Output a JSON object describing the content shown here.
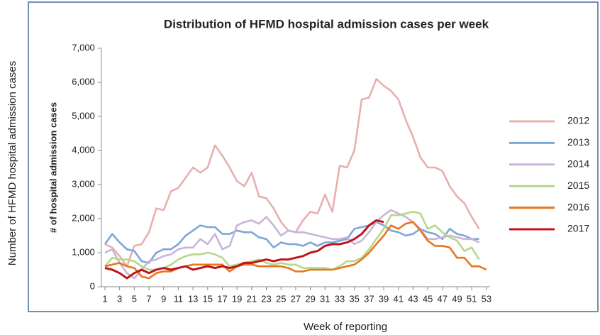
{
  "chart_data": {
    "type": "line",
    "title": "Distribution  of HFMD hospital admission  cases  per week",
    "y_label": "# of hospital admission cases",
    "outer_y_label": "Number of HFMD hospital admission cases",
    "x_label": "Week of reporting",
    "x": [
      1,
      2,
      3,
      4,
      5,
      6,
      7,
      8,
      9,
      10,
      11,
      12,
      13,
      14,
      15,
      16,
      17,
      18,
      19,
      20,
      21,
      22,
      23,
      24,
      25,
      26,
      27,
      28,
      29,
      30,
      31,
      32,
      33,
      34,
      35,
      36,
      37,
      38,
      39,
      40,
      41,
      42,
      43,
      44,
      45,
      46,
      47,
      48,
      49,
      50,
      51,
      52,
      53
    ],
    "xlim": [
      0.5,
      53.5
    ],
    "xticks": [
      1,
      3,
      5,
      7,
      9,
      11,
      13,
      15,
      17,
      19,
      21,
      23,
      25,
      27,
      29,
      31,
      33,
      35,
      37,
      39,
      41,
      43,
      45,
      47,
      49,
      51,
      53
    ],
    "ylim": [
      0,
      7000
    ],
    "yticks": [
      0,
      {
        "value": 1000,
        "label": "1,000"
      },
      {
        "value": 2000,
        "label": "2,000"
      },
      {
        "value": 3000,
        "label": "3,000"
      },
      {
        "value": 4000,
        "label": "4,000"
      },
      {
        "value": 5000,
        "label": "5,000"
      },
      {
        "value": 6000,
        "label": "6,000"
      },
      {
        "value": 7000,
        "label": "7,000"
      }
    ],
    "legend": "right",
    "series": [
      {
        "name": "2012",
        "color": "#e6b0ae",
        "values": [
          1250,
          1150,
          900,
          600,
          1200,
          1250,
          1600,
          2300,
          2250,
          2800,
          2900,
          3200,
          3500,
          3350,
          3500,
          4150,
          3850,
          3500,
          3100,
          2950,
          3350,
          2650,
          2600,
          2300,
          1900,
          1650,
          1600,
          1950,
          2200,
          2150,
          2700,
          2200,
          3550,
          3500,
          4000,
          5500,
          5550,
          6100,
          5900,
          5750,
          5500,
          4900,
          4400,
          3800,
          3500,
          3500,
          3400,
          2950,
          2650,
          2450,
          2050,
          1700,
          null
        ]
      },
      {
        "name": "2013",
        "color": "#7ea6d8",
        "values": [
          1250,
          1550,
          1300,
          1100,
          1050,
          750,
          700,
          1000,
          1100,
          1100,
          1250,
          1500,
          1650,
          1800,
          1750,
          1750,
          1550,
          1550,
          1650,
          1600,
          1600,
          1450,
          1400,
          1150,
          1300,
          1250,
          1250,
          1200,
          1300,
          1200,
          1300,
          1300,
          1350,
          1400,
          1700,
          1750,
          1800,
          1900,
          1800,
          1650,
          1600,
          1500,
          1550,
          1700,
          1600,
          1550,
          1400,
          1700,
          1550,
          1500,
          1400,
          1400,
          null
        ]
      },
      {
        "name": "2014",
        "color": "#c8b5d9",
        "values": [
          1000,
          1100,
          700,
          400,
          250,
          500,
          750,
          800,
          900,
          950,
          1100,
          1150,
          1150,
          1400,
          1250,
          1550,
          1100,
          1200,
          1800,
          1900,
          1950,
          1850,
          2050,
          1800,
          1500,
          1650,
          1600,
          1600,
          1550,
          1500,
          1450,
          1400,
          1400,
          1450,
          1250,
          1350,
          1600,
          1900,
          2100,
          2250,
          2150,
          2050,
          1900,
          1700,
          1400,
          1400,
          1450,
          1500,
          1450,
          1400,
          1400,
          1300,
          null
        ]
      },
      {
        "name": "2015",
        "color": "#b5d88a",
        "values": [
          600,
          850,
          800,
          800,
          750,
          600,
          500,
          500,
          550,
          650,
          800,
          900,
          950,
          950,
          1000,
          950,
          850,
          600,
          650,
          700,
          750,
          800,
          700,
          650,
          700,
          650,
          650,
          550,
          550,
          550,
          550,
          500,
          600,
          750,
          750,
          850,
          1100,
          1400,
          1700,
          2100,
          2100,
          2150,
          2200,
          2150,
          1700,
          1800,
          1600,
          1450,
          1350,
          1050,
          1150,
          800,
          null
        ]
      },
      {
        "name": "2016",
        "color": "#e8761c",
        "values": [
          600,
          650,
          700,
          600,
          550,
          300,
          250,
          400,
          450,
          450,
          550,
          600,
          650,
          650,
          650,
          650,
          650,
          450,
          600,
          650,
          650,
          600,
          600,
          600,
          600,
          550,
          450,
          450,
          500,
          500,
          500,
          500,
          550,
          600,
          650,
          800,
          1000,
          1250,
          1500,
          1800,
          1700,
          1850,
          1900,
          1650,
          1350,
          1200,
          1200,
          1150,
          850,
          850,
          600,
          600,
          500
        ]
      },
      {
        "name": "2017",
        "color": "#c0141b",
        "values": [
          550,
          500,
          400,
          250,
          400,
          500,
          400,
          500,
          550,
          500,
          550,
          600,
          500,
          550,
          600,
          550,
          600,
          550,
          600,
          700,
          700,
          750,
          800,
          750,
          800,
          800,
          850,
          900,
          1000,
          1050,
          1200,
          1250,
          1250,
          1300,
          1400,
          1550,
          1800,
          1950,
          1900,
          null,
          null,
          null,
          null,
          null,
          null,
          null,
          null,
          null,
          null,
          null,
          null,
          null,
          null
        ]
      }
    ]
  }
}
